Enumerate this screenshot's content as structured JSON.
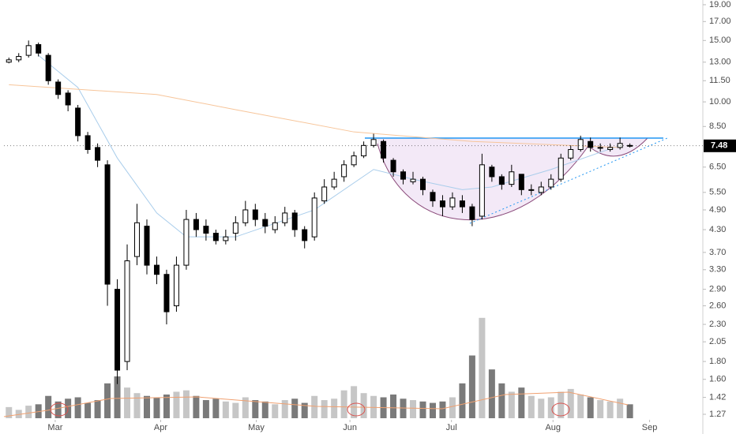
{
  "chart_data": {
    "type": "candlestick",
    "log_scale": true,
    "xlim": [
      -0.5,
      70
    ],
    "xticks": [
      {
        "value": 4.7,
        "label": "Mar"
      },
      {
        "value": 15.4,
        "label": "Apr"
      },
      {
        "value": 25.1,
        "label": "May"
      },
      {
        "value": 34.6,
        "label": "Jun"
      },
      {
        "value": 44.9,
        "label": "Jul"
      },
      {
        "value": 55.2,
        "label": "Aug"
      },
      {
        "value": 65.0,
        "label": "Sep"
      }
    ],
    "ylim": [
      1.115,
      19.6
    ],
    "yticks": [
      {
        "value": 19,
        "label": "19.00"
      },
      {
        "value": 17,
        "label": "17.00"
      },
      {
        "value": 15,
        "label": "15.00"
      },
      {
        "value": 13,
        "label": "13.00"
      },
      {
        "value": 11.5,
        "label": "11.50"
      },
      {
        "value": 10,
        "label": "10.00"
      },
      {
        "value": 8.5,
        "label": "8.50"
      },
      {
        "value": 6.5,
        "label": "6.50"
      },
      {
        "value": 5.5,
        "label": "5.50"
      },
      {
        "value": 4.9,
        "label": "4.90"
      },
      {
        "value": 4.3,
        "label": "4.30"
      },
      {
        "value": 3.7,
        "label": "3.70"
      },
      {
        "value": 3.3,
        "label": "3.30"
      },
      {
        "value": 2.9,
        "label": "2.90"
      },
      {
        "value": 2.6,
        "label": "2.60"
      },
      {
        "value": 2.3,
        "label": "2.30"
      },
      {
        "value": 2.05,
        "label": "2.05"
      },
      {
        "value": 1.8,
        "label": "1.80"
      },
      {
        "value": 1.6,
        "label": "1.60"
      },
      {
        "value": 1.42,
        "label": "1.42"
      },
      {
        "value": 1.27,
        "label": "1.27"
      }
    ],
    "last_price": 7.48,
    "up_color": "#ffffff",
    "down_color": "#000000",
    "open": [
      13.0,
      13.2,
      13.6,
      14.6,
      13.6,
      11.4,
      10.6,
      9.6,
      8.0,
      7.4,
      6.6,
      2.9,
      1.8,
      3.6,
      4.4,
      3.4,
      3.2,
      2.6,
      3.4,
      4.6,
      4.4,
      4.2,
      4.0,
      4.2,
      4.5,
      4.9,
      4.6,
      4.3,
      4.5,
      4.8,
      4.3,
      4.1,
      5.2,
      5.7,
      6.1,
      6.6,
      7.0,
      7.5,
      7.7,
      6.8,
      6.3,
      5.9,
      6.0,
      5.5,
      5.2,
      5.0,
      5.2,
      5.0,
      4.7,
      6.5,
      6.1,
      5.8,
      6.2,
      5.6,
      5.5,
      5.7,
      6.0,
      6.9,
      7.3,
      7.7,
      7.4,
      7.3,
      7.4,
      7.5
    ],
    "high": [
      13.4,
      13.8,
      15.0,
      14.8,
      13.8,
      11.6,
      10.8,
      9.8,
      8.2,
      7.6,
      6.8,
      3.1,
      3.9,
      5.1,
      4.6,
      3.6,
      3.3,
      3.6,
      4.9,
      4.8,
      4.6,
      4.3,
      4.3,
      4.7,
      5.2,
      5.1,
      4.8,
      4.7,
      5.0,
      4.9,
      4.4,
      5.5,
      6.0,
      6.3,
      6.8,
      7.2,
      7.7,
      8.1,
      7.8,
      6.9,
      6.4,
      6.3,
      6.1,
      5.6,
      5.4,
      5.5,
      5.4,
      5.1,
      7.1,
      6.6,
      6.2,
      6.6,
      6.2,
      5.8,
      5.9,
      6.2,
      7.1,
      7.5,
      8.0,
      7.9,
      7.6,
      7.6,
      7.9,
      7.6
    ],
    "low": [
      12.9,
      13.0,
      13.4,
      13.5,
      11.2,
      10.2,
      9.4,
      7.7,
      7.1,
      6.5,
      2.6,
      1.55,
      1.7,
      3.4,
      3.2,
      3.0,
      2.3,
      2.5,
      3.3,
      4.1,
      4.0,
      3.9,
      3.9,
      4.0,
      4.4,
      4.4,
      4.2,
      4.2,
      4.4,
      4.1,
      3.8,
      4.0,
      5.1,
      5.6,
      5.9,
      6.5,
      6.9,
      7.4,
      6.7,
      6.1,
      5.8,
      5.8,
      5.4,
      5.0,
      4.7,
      4.9,
      4.8,
      4.4,
      4.6,
      5.9,
      5.6,
      5.7,
      5.4,
      5.4,
      5.4,
      5.6,
      5.9,
      6.8,
      7.2,
      7.2,
      7.2,
      7.2,
      7.3,
      7.4
    ],
    "close": [
      13.2,
      13.5,
      14.5,
      13.8,
      11.5,
      10.5,
      9.8,
      8.0,
      7.3,
      6.8,
      3.0,
      1.7,
      3.5,
      4.5,
      3.4,
      3.2,
      2.5,
      3.4,
      4.6,
      4.3,
      4.2,
      4.0,
      4.1,
      4.5,
      4.9,
      4.6,
      4.4,
      4.5,
      4.8,
      4.3,
      4.0,
      5.3,
      5.7,
      6.0,
      6.6,
      7.0,
      7.5,
      7.8,
      6.9,
      6.3,
      6.0,
      6.0,
      5.6,
      5.2,
      5.0,
      5.3,
      5.0,
      4.6,
      6.6,
      6.1,
      5.8,
      6.3,
      5.6,
      5.6,
      5.7,
      6.0,
      6.9,
      7.3,
      7.8,
      7.4,
      7.4,
      7.4,
      7.6,
      7.48
    ],
    "y2lim": [
      0,
      30
    ],
    "volume": {
      "axis": "y2",
      "up_color": "#c6c6c6",
      "down_color": "#7a7a7a",
      "values": [
        0.8,
        0.6,
        0.9,
        1.0,
        1.6,
        1.2,
        1.4,
        1.5,
        1.1,
        1.3,
        2.5,
        3.0,
        2.2,
        1.8,
        1.6,
        1.5,
        1.7,
        1.9,
        2.0,
        1.6,
        1.3,
        1.4,
        1.2,
        1.1,
        1.5,
        1.3,
        1.2,
        1.0,
        1.3,
        1.4,
        1.1,
        1.6,
        1.3,
        1.4,
        2.0,
        2.3,
        1.8,
        1.6,
        1.5,
        1.7,
        1.4,
        1.3,
        1.2,
        1.1,
        1.2,
        1.5,
        2.5,
        4.5,
        7.2,
        3.5,
        2.5,
        1.9,
        2.2,
        1.6,
        1.4,
        1.5,
        1.9,
        2.1,
        1.7,
        1.5,
        1.3,
        1.2,
        1.4,
        1.0
      ]
    },
    "lines": [
      {
        "color": "#a9cdeb",
        "x": [
          3,
          7,
          11,
          15,
          18,
          23,
          31,
          37,
          41,
          46,
          49,
          55,
          62
        ],
        "values": [
          13.6,
          11.0,
          6.9,
          4.8,
          4.1,
          4.1,
          4.9,
          6.4,
          6.0,
          5.6,
          5.7,
          6.4,
          7.5
        ]
      },
      {
        "color": "#f7c59a",
        "x": [
          0,
          15,
          23,
          35,
          47,
          62
        ],
        "values": [
          11.2,
          10.5,
          9.5,
          8.2,
          7.7,
          7.4
        ]
      }
    ]
  }
}
